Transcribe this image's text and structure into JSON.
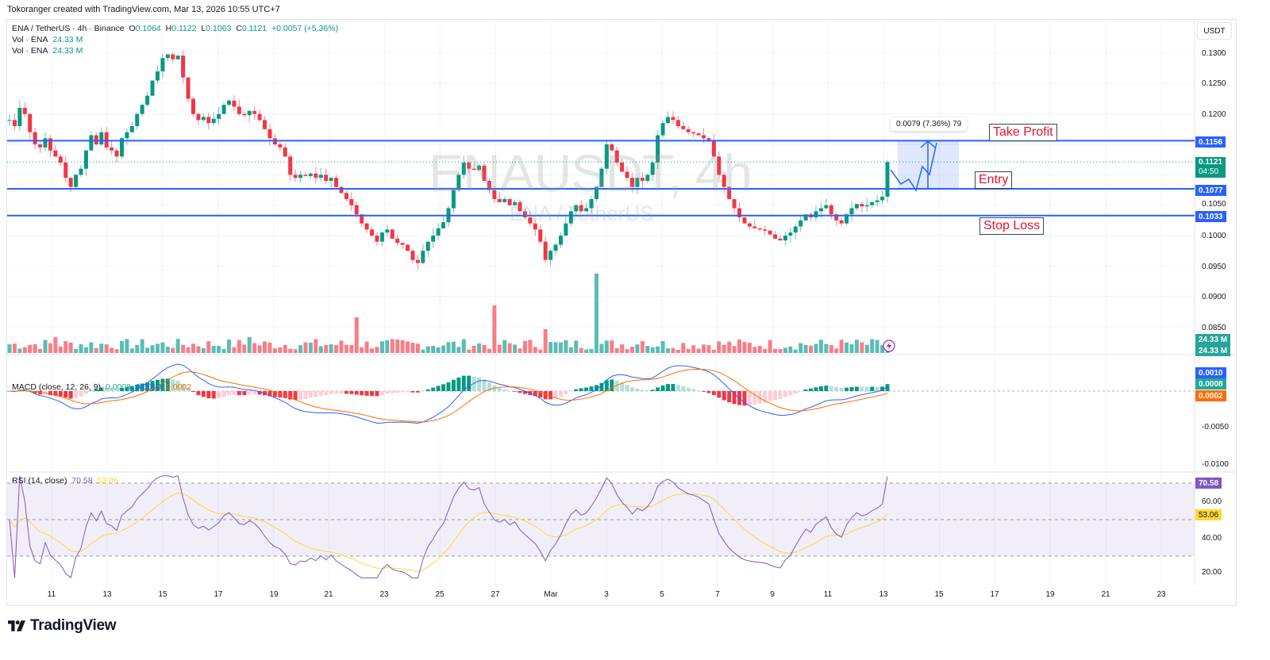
{
  "credit": "Tokoranger created with TradingView.com, Mar 13, 2026 10:55 UTC+7",
  "symbol": {
    "title": "ENA / TetherUS · 4h · Binance",
    "open_label": "O",
    "open": "0.1064",
    "high_label": "H",
    "high": "0.1122",
    "low_label": "L",
    "low": "0.1063",
    "close_label": "C",
    "close": "0.1121",
    "change": "+0.0057 (+5.36%)"
  },
  "volume_legends": [
    {
      "label": "Vol · ENA",
      "value": "24.33 M"
    },
    {
      "label": "Vol · ENA",
      "value": "24.33 M"
    }
  ],
  "watermark": {
    "main": "ENAUSDT, 4h",
    "sub": "ENA / TetherUS"
  },
  "currency_button": "USDT",
  "price_axis": [
    "0.1300",
    "0.1250",
    "0.1200",
    "0.1050",
    "0.1000",
    "0.0950",
    "0.0900",
    "0.0850"
  ],
  "price_tags": {
    "take_profit": "0.1156",
    "last_price": "0.1121",
    "countdown": "04:50",
    "entry": "0.1077",
    "stop_loss": "0.1033",
    "volume_1": "24.33 M",
    "volume_2": "24.33 M"
  },
  "macd": {
    "legend": "MACD (close, 12, 26, 9)",
    "histogram": "0.0008",
    "macd": "0.0010",
    "signal": "0.0002",
    "axis": [
      "-0.0050",
      "-0.0100"
    ]
  },
  "rsi": {
    "legend": "RSI (14, close)",
    "value": "70.58",
    "ma": "53.06",
    "axis": [
      "60.00",
      "40.00",
      "20.00"
    ]
  },
  "x_axis": [
    "11",
    "13",
    "15",
    "17",
    "19",
    "21",
    "23",
    "25",
    "27",
    "Mar",
    "3",
    "5",
    "7",
    "9",
    "11",
    "13",
    "15",
    "17",
    "19",
    "21",
    "23"
  ],
  "annotations": {
    "take_profit": "Take Profit",
    "entry": "Entry",
    "stop_loss": "Stop Loss",
    "measure": "0.0079 (7.36%) 79"
  },
  "brand": "TradingView",
  "colors": {
    "up": "#089981",
    "down": "#f23645",
    "line": "#2962ff",
    "macd": "#2962ff",
    "signal": "#ff6d00",
    "rsi": "#7e57c2",
    "rsi_ma": "#fdd835"
  },
  "chart_data": {
    "type": "candlestick",
    "title": "ENAUSDT, 4h (Binance)",
    "ylabel": "USDT",
    "ylim": [
      0.083,
      0.132
    ],
    "x_ticks": [
      "11",
      "13",
      "15",
      "17",
      "19",
      "21",
      "23",
      "25",
      "27",
      "Mar",
      "3",
      "5",
      "7",
      "9",
      "11",
      "13",
      "15",
      "17",
      "19",
      "21",
      "23"
    ],
    "levels": [
      {
        "name": "Take Profit",
        "value": 0.1156
      },
      {
        "name": "Entry",
        "value": 0.1077
      },
      {
        "name": "Stop Loss",
        "value": 0.1033
      }
    ],
    "last_candle": {
      "open": 0.1064,
      "high": 0.1122,
      "low": 0.1063,
      "close": 0.1121,
      "change": 0.0057,
      "change_pct": 5.36
    },
    "approx_closes": [
      0.119,
      0.118,
      0.121,
      0.12,
      0.117,
      0.115,
      0.1145,
      0.116,
      0.114,
      0.113,
      0.112,
      0.1095,
      0.108,
      0.11,
      0.111,
      0.114,
      0.1165,
      0.115,
      0.117,
      0.1145,
      0.114,
      0.113,
      0.116,
      0.117,
      0.118,
      0.12,
      0.1215,
      0.123,
      0.1255,
      0.127,
      0.1292,
      0.1298,
      0.129,
      0.1296,
      0.126,
      0.1225,
      0.12,
      0.119,
      0.1195,
      0.1185,
      0.1192,
      0.12,
      0.1215,
      0.1222,
      0.1212,
      0.12,
      0.1198,
      0.1205,
      0.12,
      0.119,
      0.1175,
      0.116,
      0.115,
      0.1145,
      0.113,
      0.11,
      0.1095,
      0.11,
      0.1098,
      0.1102,
      0.1095,
      0.11,
      0.109,
      0.1095,
      0.108,
      0.107,
      0.106,
      0.105,
      0.1035,
      0.102,
      0.101,
      0.1,
      0.099,
      0.1005,
      0.101,
      0.0995,
      0.0988,
      0.0985,
      0.0975,
      0.096,
      0.0955,
      0.0975,
      0.099,
      0.1,
      0.1012,
      0.1022,
      0.1045,
      0.1075,
      0.11,
      0.112,
      0.111,
      0.1108,
      0.1115,
      0.109,
      0.1075,
      0.106,
      0.1055,
      0.106,
      0.105,
      0.1055,
      0.104,
      0.103,
      0.102,
      0.101,
      0.099,
      0.096,
      0.0975,
      0.0985,
      0.1,
      0.102,
      0.104,
      0.105,
      0.104,
      0.1045,
      0.106,
      0.108,
      0.111,
      0.115,
      0.114,
      0.112,
      0.1105,
      0.1095,
      0.108,
      0.1095,
      0.109,
      0.11,
      0.112,
      0.1165,
      0.1185,
      0.1195,
      0.119,
      0.118,
      0.1175,
      0.117,
      0.1168,
      0.1165,
      0.116,
      0.1155,
      0.113,
      0.11,
      0.108,
      0.106,
      0.1045,
      0.103,
      0.102,
      0.1015,
      0.1012,
      0.101,
      0.1008,
      0.1002,
      0.0995,
      0.0992,
      0.1,
      0.1005,
      0.1015,
      0.1025,
      0.1035,
      0.103,
      0.104,
      0.1045,
      0.105,
      0.1035,
      0.1025,
      0.102,
      0.1035,
      0.1045,
      0.1052,
      0.1048,
      0.105,
      0.1055,
      0.1058,
      0.1064,
      0.1121
    ],
    "volume_last": "24.33M",
    "macd": {
      "params": "close, 12, 26, 9",
      "histogram": 0.0008,
      "macd": 0.001,
      "signal": 0.0002,
      "ylim": [
        -0.0115,
        0.004
      ]
    },
    "rsi": {
      "params": "14, close",
      "value": 70.58,
      "ma": 53.06,
      "bands": [
        70,
        50,
        30
      ],
      "ylim": [
        15,
        78
      ]
    }
  }
}
